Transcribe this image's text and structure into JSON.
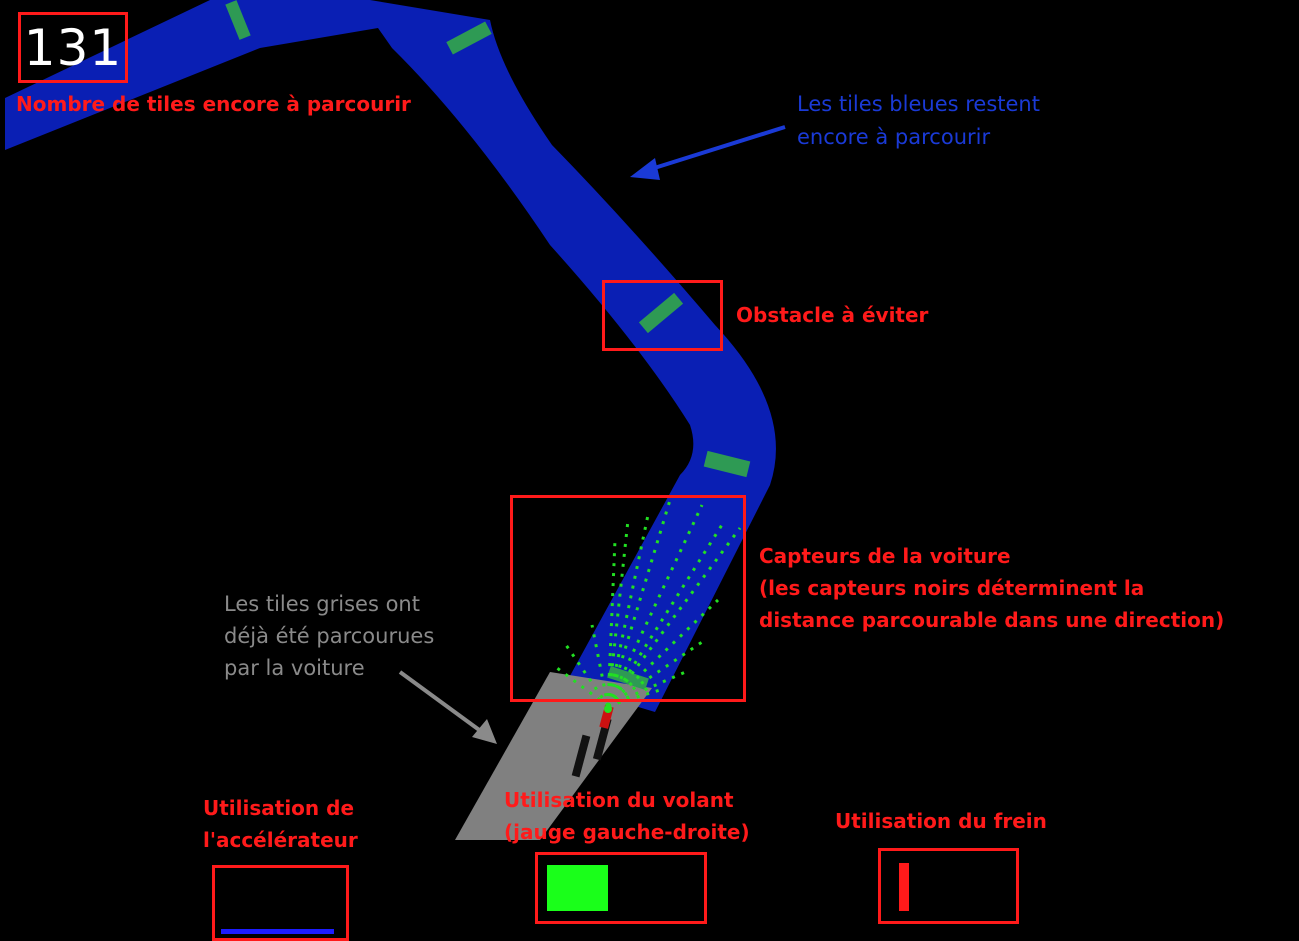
{
  "hud": {
    "tiles_remaining": "131",
    "accelerator_level": 0.9,
    "steering_level": 0.5,
    "brake_level": 0.85
  },
  "annotations": {
    "tiles_remaining_label": "Nombre de tiles encore à parcourir",
    "blue_tiles_line1": "Les tiles bleues restent",
    "blue_tiles_line2": "encore à parcourir",
    "obstacle_label": "Obstacle à éviter",
    "sensors_line1": "Capteurs de la voiture",
    "sensors_line2": "(les capteurs noirs déterminent la",
    "sensors_line3": "distance parcourable dans une direction)",
    "gray_tiles_line1": "Les tiles grises ont",
    "gray_tiles_line2": "déjà été parcourues",
    "gray_tiles_line3": "par la voiture",
    "accelerator_line1": "Utilisation de",
    "accelerator_line2": "l'accélérateur",
    "steering_line1": "Utilisation du volant",
    "steering_line2": "(jauge gauche-droite)",
    "brake_label": "Utilisation du frein"
  },
  "colors": {
    "remaining_track": "#0a1fb4",
    "visited_track": "#808080",
    "obstacle": "#2e9a54",
    "sensor_dots": "#22e022",
    "car": "#cc1111",
    "annotation_red": "#ff1a1a",
    "annotation_blue": "#1a3ad6",
    "annotation_gray": "#8a8a8a",
    "accelerator_bar": "#1c1cff",
    "steering_bar": "#1aff1a",
    "brake_bar": "#ff1a1a"
  }
}
